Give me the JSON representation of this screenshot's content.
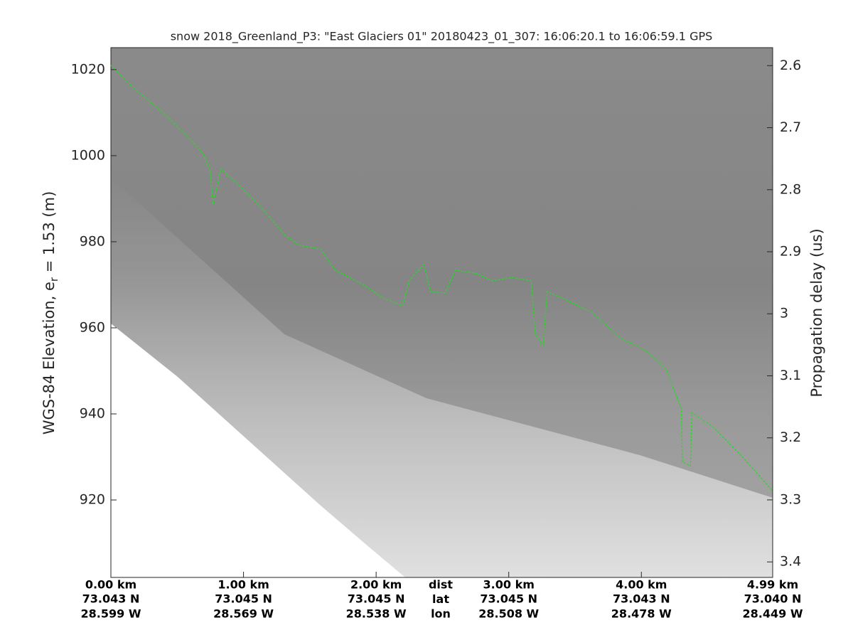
{
  "chart_data": {
    "type": "line",
    "title": "snow 2018_Greenland_P3: \"East Glaciers 01\"  20180423_01_307: 16:06:20.1 to 16:06:59.1 GPS",
    "ylabel": {
      "text": "WGS-84 Elevation, e",
      "subscript": "r",
      "suffix": " = 1.53 (m)"
    },
    "y2label": "Propagation delay (us)",
    "xlim": [
      0,
      4.99
    ],
    "ylim": [
      902,
      1025.1
    ],
    "y2lim": [
      3.425,
      2.571
    ],
    "yticks": [
      920,
      940,
      960,
      980,
      1000,
      1020
    ],
    "y2ticks": [
      2.6,
      2.7,
      2.8,
      2.9,
      3,
      3.1,
      3.2,
      3.3,
      3.4
    ],
    "xticks": [
      {
        "value": 0,
        "label": "0.00 km"
      },
      {
        "value": 1,
        "label": "1.00 km"
      },
      {
        "value": 2,
        "label": "2.00 km"
      },
      {
        "value": 3,
        "label": "3.00 km"
      },
      {
        "value": 4,
        "label": "4.00 km"
      },
      {
        "value": 4.99,
        "label": "4.99 km"
      }
    ],
    "lat_labels": [
      "73.043 N",
      "73.045 N",
      "73.045 N",
      "73.045 N",
      "73.043 N",
      "73.040 N"
    ],
    "lon_labels": [
      "28.599 W",
      "28.569 W",
      "28.538 W",
      "28.508 W",
      "28.478 W",
      "28.449 W"
    ],
    "row_names": [
      "dist",
      "lat",
      "lon"
    ],
    "x": [
      0,
      0.18,
      0.4,
      0.59,
      0.69,
      0.75,
      0.77,
      0.83,
      0.99,
      1.15,
      1.31,
      1.42,
      1.58,
      1.69,
      1.9,
      2.06,
      2.2,
      2.25,
      2.36,
      2.41,
      2.52,
      2.6,
      2.76,
      2.87,
      3.03,
      3.17,
      3.2,
      3.26,
      3.29,
      3.41,
      3.63,
      3.84,
      4.05,
      4.19,
      4.3,
      4.31,
      4.37,
      4.38,
      4.54,
      4.75,
      4.99
    ],
    "values": [
      1021,
      1015.5,
      1009.8,
      1004,
      1000.7,
      996.5,
      988.6,
      997,
      992.4,
      987.4,
      981.6,
      979.2,
      978.3,
      973.4,
      970.1,
      966.8,
      965.1,
      971,
      974.7,
      968.4,
      968.1,
      973.4,
      972.6,
      970.9,
      971.7,
      970.9,
      958.5,
      956,
      968.4,
      966.8,
      963.5,
      957.7,
      954.4,
      950.2,
      941.2,
      928.8,
      927.9,
      940.3,
      937,
      930.4,
      922.1
    ],
    "color": "#22dd22"
  }
}
